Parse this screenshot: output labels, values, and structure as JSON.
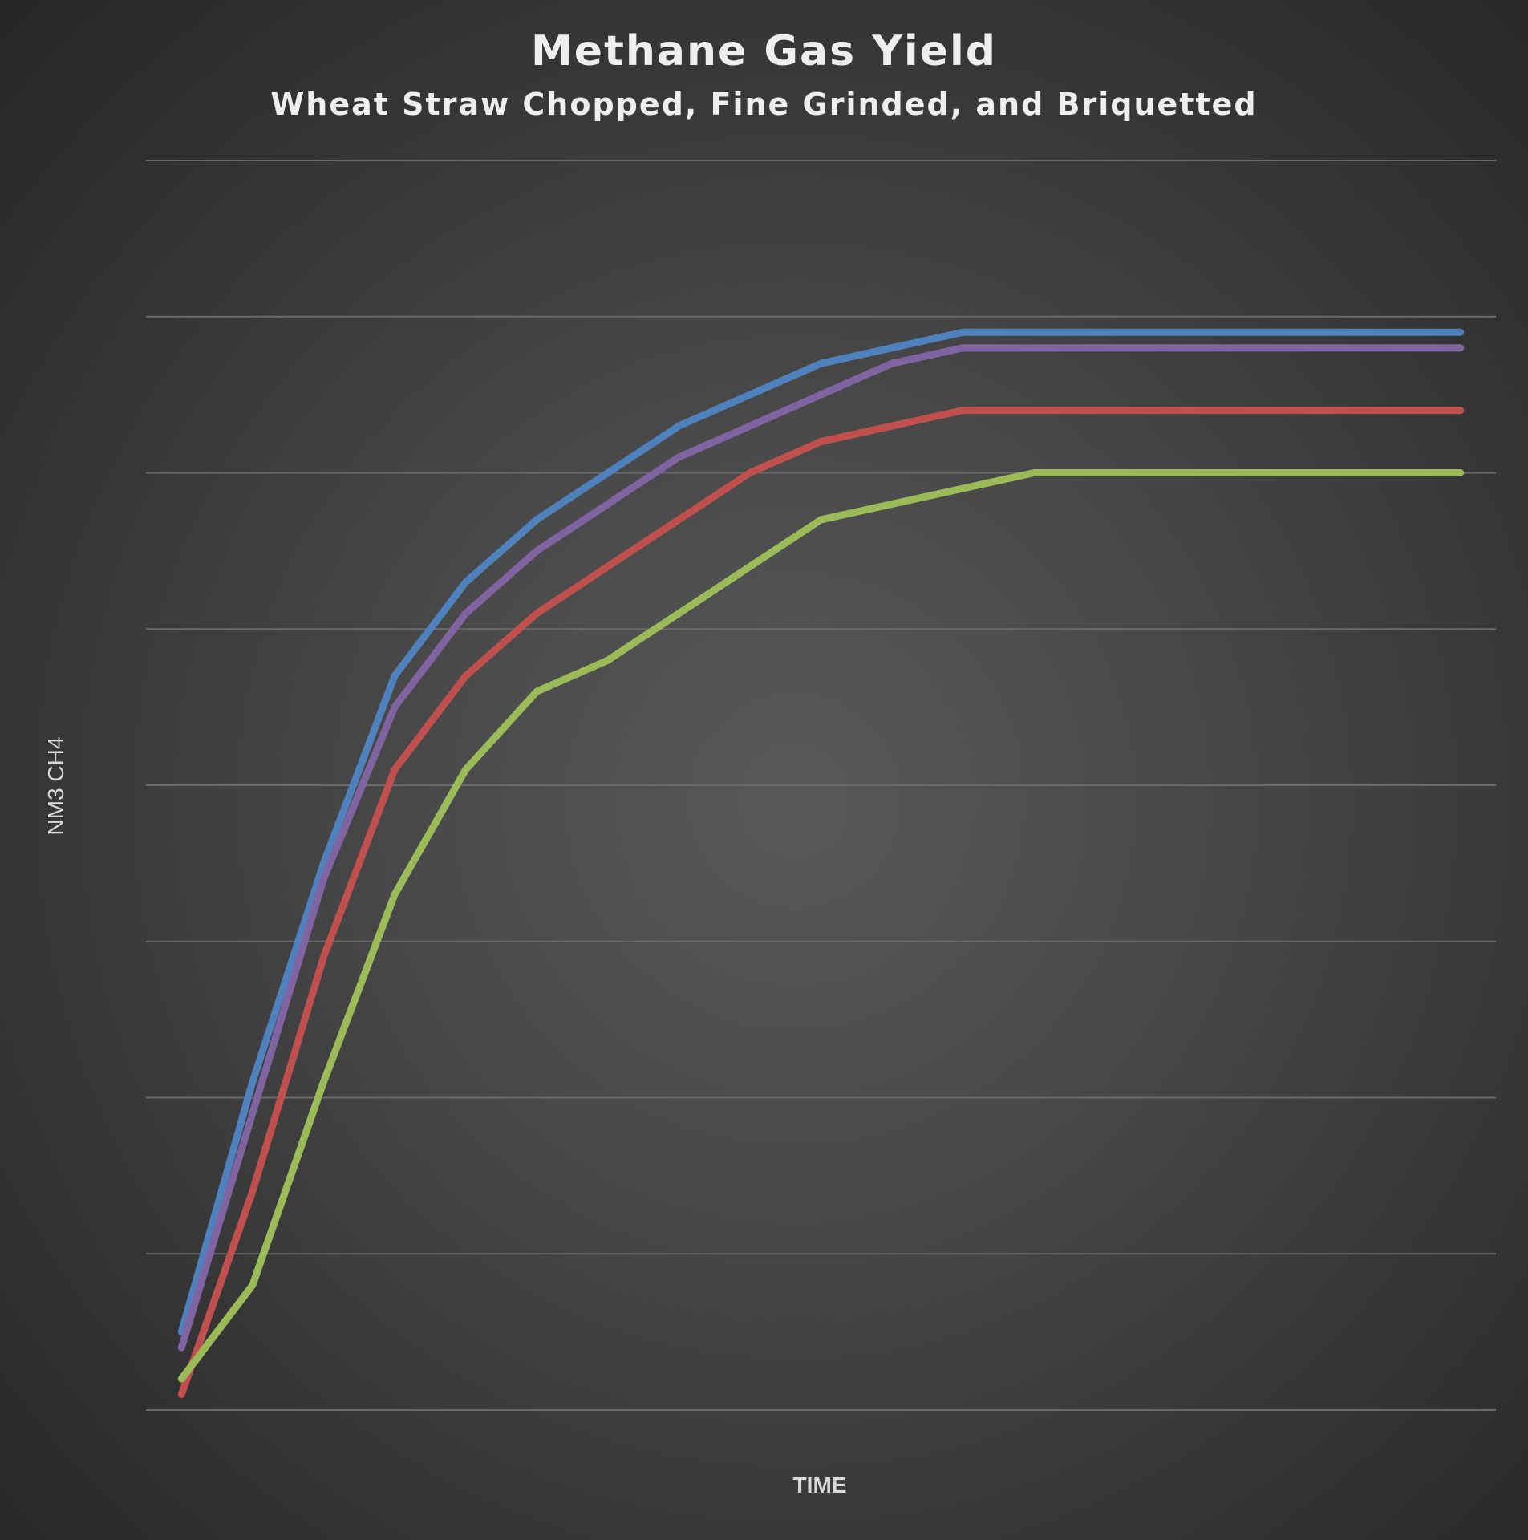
{
  "chart_data": {
    "type": "line",
    "title": "Methane Gas Yield",
    "subtitle": "Wheat Straw Chopped, Fine Grinded, and Briquetted",
    "xlabel": "TIME",
    "ylabel": "NM3 CH4",
    "x": [
      0,
      1,
      2,
      3,
      4,
      5,
      6,
      7,
      8,
      9,
      10,
      11,
      12,
      13,
      14,
      15,
      16,
      17,
      18
    ],
    "xlim": [
      -0.5,
      18.5
    ],
    "ylim": [
      0,
      8
    ],
    "grid": true,
    "legend": "none",
    "series": [
      {
        "color": "#4f81bd",
        "values": [
          0.5,
          2.1,
          3.5,
          4.7,
          5.3,
          5.7,
          6.0,
          6.3,
          6.5,
          6.7,
          6.8,
          6.9,
          6.9,
          6.9,
          6.9,
          6.9,
          6.9,
          6.9,
          6.9
        ]
      },
      {
        "color": "#8064a2",
        "values": [
          0.4,
          1.9,
          3.4,
          4.5,
          5.1,
          5.5,
          5.8,
          6.1,
          6.3,
          6.5,
          6.7,
          6.8,
          6.8,
          6.8,
          6.8,
          6.8,
          6.8,
          6.8,
          6.8
        ]
      },
      {
        "color": "#c0504d",
        "values": [
          0.1,
          1.4,
          2.9,
          4.1,
          4.7,
          5.1,
          5.4,
          5.7,
          6.0,
          6.2,
          6.3,
          6.4,
          6.4,
          6.4,
          6.4,
          6.4,
          6.4,
          6.4,
          6.4
        ]
      },
      {
        "color": "#9bbb59",
        "values": [
          0.2,
          0.8,
          2.1,
          3.3,
          4.1,
          4.6,
          4.8,
          5.1,
          5.4,
          5.7,
          5.8,
          5.9,
          6.0,
          6.0,
          6.0,
          6.0,
          6.0,
          6.0,
          6.0
        ]
      }
    ]
  }
}
